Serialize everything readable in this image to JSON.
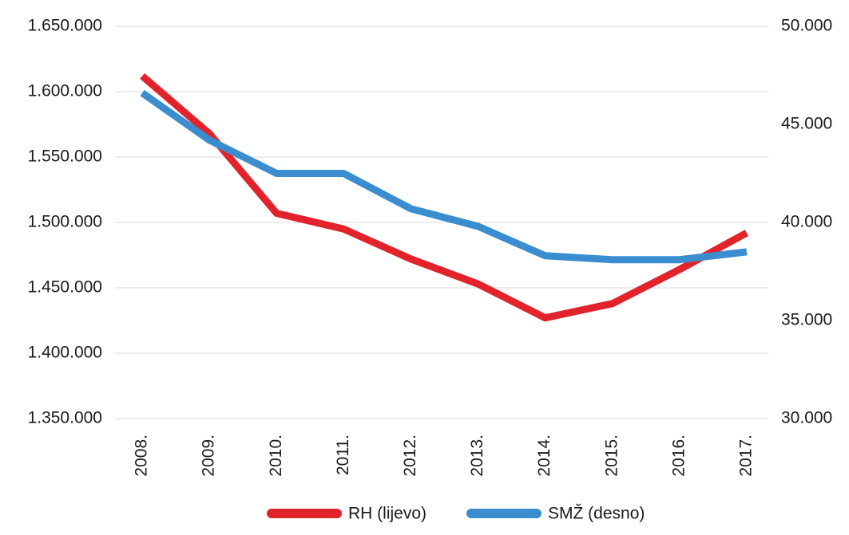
{
  "chart_data": {
    "type": "line",
    "categories": [
      "2008.",
      "2009.",
      "2010.",
      "2011.",
      "2012.",
      "2013.",
      "2014.",
      "2015.",
      "2016.",
      "2017."
    ],
    "series": [
      {
        "name": "RH (lijevo)",
        "color": "#e3232b",
        "values": [
          1612000,
          1568000,
          1507000,
          1495000,
          1472000,
          1453000,
          1427000,
          1438000,
          1464000,
          1492000
        ]
      },
      {
        "name": "SMŽ (desno)",
        "color": "#3a8dcf",
        "axis": "y2",
        "values": [
          46600,
          44200,
          42500,
          42500,
          40700,
          39800,
          38300,
          38100,
          38100,
          38500
        ]
      }
    ],
    "ylim": [
      1350000,
      1650000
    ],
    "yticks": [
      {
        "value": 1350000,
        "label": "1.350.000"
      },
      {
        "value": 1400000,
        "label": "1.400.000"
      },
      {
        "value": 1450000,
        "label": "1.450.000"
      },
      {
        "value": 1500000,
        "label": "1.500.000"
      },
      {
        "value": 1550000,
        "label": "1.550.000"
      },
      {
        "value": 1600000,
        "label": "1.600.000"
      },
      {
        "value": 1650000,
        "label": "1.650.000"
      }
    ],
    "y2lim": [
      30000,
      50000
    ],
    "y2ticks": [
      {
        "value": 30000,
        "label": "30.000"
      },
      {
        "value": 35000,
        "label": "35.000"
      },
      {
        "value": 40000,
        "label": "40.000"
      },
      {
        "value": 45000,
        "label": "45.000"
      },
      {
        "value": 50000,
        "label": "50.000"
      }
    ],
    "grid": true,
    "legend": "bottom"
  }
}
